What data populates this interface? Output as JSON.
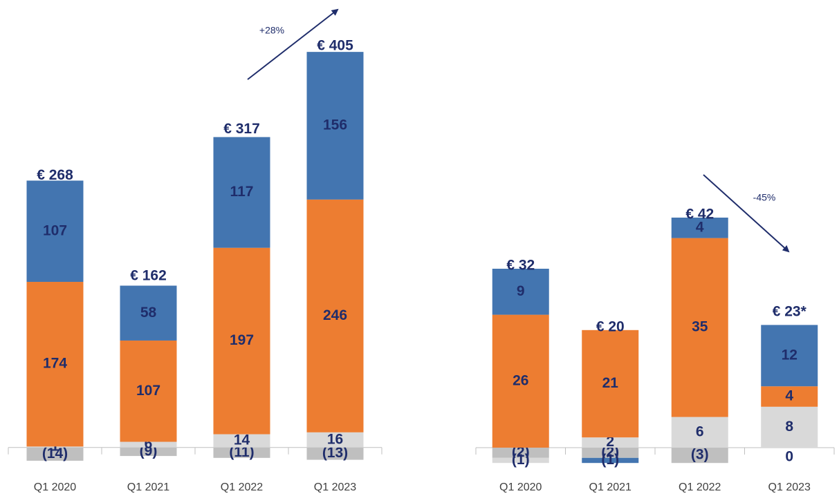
{
  "chart_data": [
    {
      "type": "stacked_bar",
      "categories": [
        "Q1 2020",
        "Q1 2021",
        "Q1 2022",
        "Q1 2023"
      ],
      "series": [
        {
          "color": "#bfbfbf",
          "values": [
            -14,
            -9,
            -11,
            -13
          ],
          "value_labels": [
            "(14)",
            "(9)",
            "(11)",
            "(13)"
          ]
        },
        {
          "color": "#d9d9d9",
          "values": [
            1,
            6,
            14,
            16
          ]
        },
        {
          "color": "#ed7d31",
          "values": [
            174,
            107,
            197,
            246
          ]
        },
        {
          "color": "#4375b0",
          "values": [
            107,
            58,
            117,
            156
          ]
        }
      ],
      "totals": {
        "values": [
          268,
          162,
          317,
          405
        ],
        "value_labels": [
          "€ 268",
          "€ 162",
          "€ 317",
          "€ 405"
        ]
      },
      "annotation": "+28%",
      "ylim": [
        -25,
        440
      ]
    },
    {
      "type": "stacked_bar",
      "categories": [
        "Q1 2020",
        "Q1 2021",
        "Q1 2022",
        "Q1 2023"
      ],
      "series": [
        {
          "color": "#bfbfbf",
          "values": [
            -2,
            -2,
            -3,
            0
          ],
          "value_labels": [
            "(2)",
            "(2)",
            "(3)",
            "0"
          ]
        },
        {
          "color": "#d9d9d9",
          "values": [
            -1,
            2,
            6,
            8
          ],
          "value_labels": [
            "(1)",
            "2",
            "6",
            "8"
          ]
        },
        {
          "color": "#ed7d31",
          "values": [
            26,
            21,
            35,
            4
          ]
        },
        {
          "color": "#4375b0",
          "values": [
            9,
            -1,
            4,
            12
          ],
          "value_labels": [
            "9",
            "(1)",
            "4",
            "12"
          ]
        }
      ],
      "totals": {
        "values": [
          32,
          20,
          42,
          23
        ],
        "value_labels": [
          "€ 32",
          "€ 20",
          "€ 42",
          "€ 23*"
        ]
      },
      "annotation": "-45%",
      "ylim": [
        -5,
        50
      ]
    }
  ]
}
